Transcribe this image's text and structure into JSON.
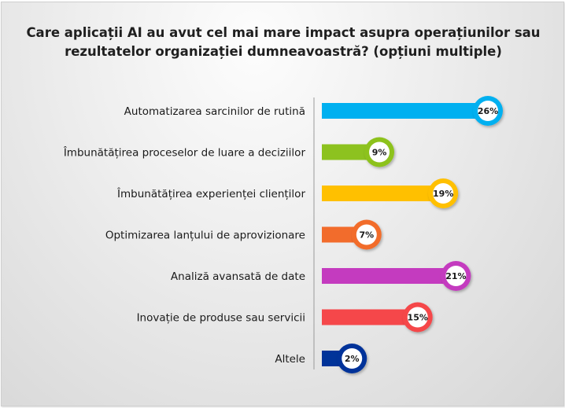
{
  "chart_data": {
    "type": "bar",
    "orientation": "horizontal",
    "title": "Care aplicații AI au avut cel mai mare impact asupra operațiunilor sau rezultatelor organizației dumneavoastră? (opțiuni multiple)",
    "title_lines": [
      "Care aplicații AI au avut cel mai mare impact asupra operațiunilor sau",
      "rezultatelor organizației dumneavoastră? (opțiuni multiple)"
    ],
    "xlabel": "",
    "ylabel": "",
    "xlim": [
      0,
      26
    ],
    "grid": false,
    "legend": "none",
    "categories": [
      "Automatizarea sarcinilor de rutină",
      "Îmbunătățirea proceselor de luare a deciziilor",
      "Îmbunătățirea experienței clienților",
      "Optimizarea lanțului de aprovizionare",
      "Analiză avansată de date",
      "Inovație de produse sau servicii",
      "Altele"
    ],
    "values": [
      26,
      9,
      19,
      7,
      21,
      15,
      2
    ],
    "value_labels": [
      "26%",
      "9%",
      "19%",
      "7%",
      "21%",
      "15%",
      "2%"
    ],
    "colors": [
      "#00b0f0",
      "#8dc21f",
      "#ffc000",
      "#f26c2c",
      "#c43bbf",
      "#f5474a",
      "#003399"
    ]
  }
}
